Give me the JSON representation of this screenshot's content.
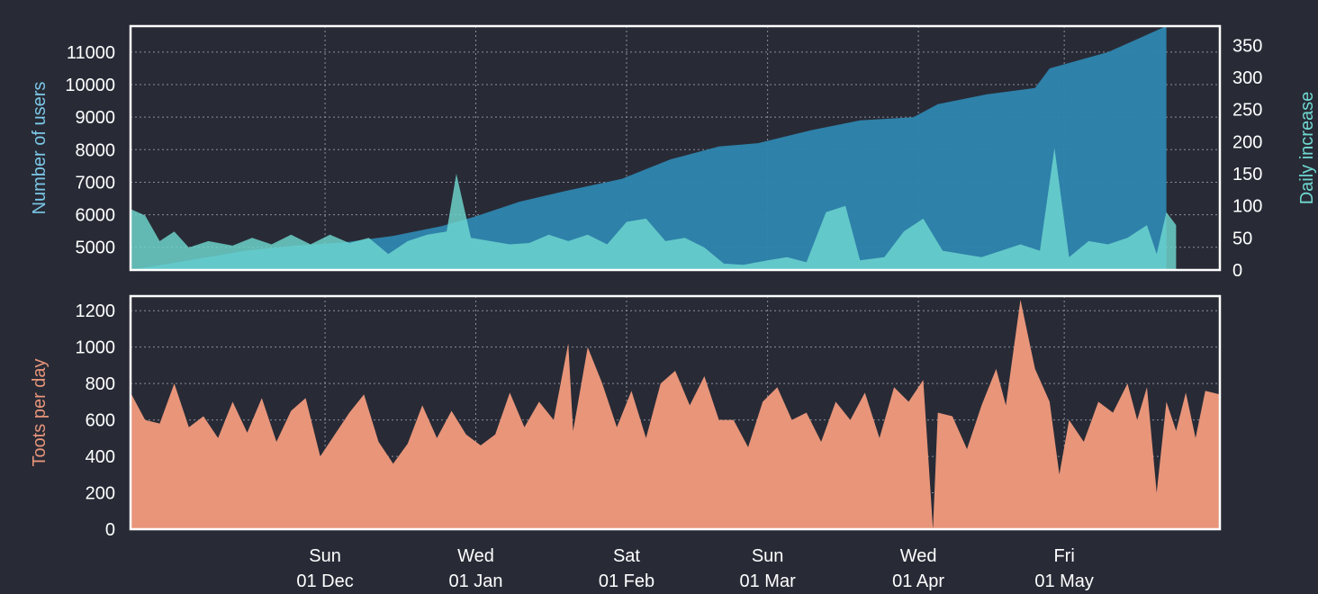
{
  "chart_data": [
    {
      "type": "area",
      "ylabel": "Number of users",
      "y2label": "Daily increase",
      "ylim": [
        4300,
        11800
      ],
      "y2lim": [
        0,
        380
      ],
      "yticks": [
        5000,
        6000,
        7000,
        8000,
        9000,
        10000,
        11000
      ],
      "y2ticks": [
        0,
        50,
        100,
        150,
        200,
        250,
        300,
        350
      ],
      "grid": true,
      "colors": {
        "users": "#2e86b0",
        "increase": "#6fd8d0",
        "axis_left": "#7cc8e8",
        "axis_right": "#6fd8d0"
      },
      "series": [
        {
          "name": "Number of users",
          "axis": "left",
          "points": [
            [
              "2019-10-22",
              4300
            ],
            [
              "2019-11-01",
              4550
            ],
            [
              "2019-11-15",
              4900
            ],
            [
              "2019-11-25",
              5050
            ],
            [
              "2019-12-05",
              5150
            ],
            [
              "2019-12-15",
              5350
            ],
            [
              "2019-12-25",
              5650
            ],
            [
              "2020-01-01",
              5950
            ],
            [
              "2020-01-10",
              6400
            ],
            [
              "2020-01-20",
              6750
            ],
            [
              "2020-01-31",
              7100
            ],
            [
              "2020-02-10",
              7700
            ],
            [
              "2020-02-20",
              8100
            ],
            [
              "2020-02-28",
              8200
            ],
            [
              "2020-03-10",
              8600
            ],
            [
              "2020-03-20",
              8900
            ],
            [
              "2020-03-31",
              9000
            ],
            [
              "2020-04-05",
              9400
            ],
            [
              "2020-04-15",
              9700
            ],
            [
              "2020-04-25",
              9900
            ],
            [
              "2020-04-28",
              10500
            ],
            [
              "2020-05-10",
              11000
            ],
            [
              "2020-05-22",
              11800
            ]
          ]
        },
        {
          "name": "Daily increase",
          "axis": "right",
          "points": [
            [
              "2019-10-22",
              95
            ],
            [
              "2019-10-25",
              85
            ],
            [
              "2019-10-28",
              45
            ],
            [
              "2019-10-31",
              60
            ],
            [
              "2019-11-03",
              35
            ],
            [
              "2019-11-07",
              45
            ],
            [
              "2019-11-12",
              38
            ],
            [
              "2019-11-16",
              50
            ],
            [
              "2019-11-20",
              40
            ],
            [
              "2019-11-24",
              55
            ],
            [
              "2019-11-28",
              40
            ],
            [
              "2019-12-02",
              55
            ],
            [
              "2019-12-06",
              42
            ],
            [
              "2019-12-10",
              50
            ],
            [
              "2019-12-14",
              25
            ],
            [
              "2019-12-18",
              45
            ],
            [
              "2019-12-22",
              55
            ],
            [
              "2019-12-26",
              60
            ],
            [
              "2019-12-28",
              150
            ],
            [
              "2019-12-31",
              50
            ],
            [
              "2020-01-04",
              45
            ],
            [
              "2020-01-08",
              40
            ],
            [
              "2020-01-12",
              42
            ],
            [
              "2020-01-16",
              55
            ],
            [
              "2020-01-20",
              45
            ],
            [
              "2020-01-24",
              55
            ],
            [
              "2020-01-28",
              40
            ],
            [
              "2020-02-01",
              75
            ],
            [
              "2020-02-05",
              80
            ],
            [
              "2020-02-09",
              45
            ],
            [
              "2020-02-13",
              50
            ],
            [
              "2020-02-17",
              35
            ],
            [
              "2020-02-21",
              10
            ],
            [
              "2020-02-25",
              8
            ],
            [
              "2020-03-01",
              15
            ],
            [
              "2020-03-05",
              20
            ],
            [
              "2020-03-09",
              12
            ],
            [
              "2020-03-13",
              90
            ],
            [
              "2020-03-17",
              100
            ],
            [
              "2020-03-20",
              15
            ],
            [
              "2020-03-25",
              20
            ],
            [
              "2020-03-29",
              60
            ],
            [
              "2020-04-02",
              80
            ],
            [
              "2020-04-06",
              30
            ],
            [
              "2020-04-10",
              25
            ],
            [
              "2020-04-14",
              20
            ],
            [
              "2020-04-18",
              30
            ],
            [
              "2020-04-22",
              40
            ],
            [
              "2020-04-26",
              30
            ],
            [
              "2020-04-29",
              190
            ],
            [
              "2020-05-02",
              20
            ],
            [
              "2020-05-06",
              45
            ],
            [
              "2020-05-10",
              40
            ],
            [
              "2020-05-14",
              50
            ],
            [
              "2020-05-18",
              70
            ],
            [
              "2020-05-20",
              25
            ],
            [
              "2020-05-22",
              90
            ],
            [
              "2020-05-24",
              70
            ]
          ]
        }
      ]
    },
    {
      "type": "area",
      "ylabel": "Toots per day",
      "ylim": [
        0,
        1280
      ],
      "yticks": [
        0,
        200,
        400,
        600,
        800,
        1000,
        1200
      ],
      "grid": true,
      "colors": {
        "toots": "#e8957a",
        "axis_left": "#e8957a"
      },
      "series": [
        {
          "name": "Toots per day",
          "axis": "left",
          "points": [
            [
              "2019-10-22",
              750
            ],
            [
              "2019-10-25",
              600
            ],
            [
              "2019-10-28",
              580
            ],
            [
              "2019-10-31",
              800
            ],
            [
              "2019-11-03",
              560
            ],
            [
              "2019-11-06",
              620
            ],
            [
              "2019-11-09",
              500
            ],
            [
              "2019-11-12",
              700
            ],
            [
              "2019-11-15",
              530
            ],
            [
              "2019-11-18",
              720
            ],
            [
              "2019-11-21",
              480
            ],
            [
              "2019-11-24",
              650
            ],
            [
              "2019-11-27",
              720
            ],
            [
              "2019-11-30",
              400
            ],
            [
              "2019-12-03",
              520
            ],
            [
              "2019-12-06",
              640
            ],
            [
              "2019-12-09",
              740
            ],
            [
              "2019-12-12",
              480
            ],
            [
              "2019-12-15",
              360
            ],
            [
              "2019-12-18",
              470
            ],
            [
              "2019-12-21",
              680
            ],
            [
              "2019-12-24",
              500
            ],
            [
              "2019-12-27",
              650
            ],
            [
              "2019-12-30",
              520
            ],
            [
              "2020-01-02",
              460
            ],
            [
              "2020-01-05",
              520
            ],
            [
              "2020-01-08",
              750
            ],
            [
              "2020-01-11",
              560
            ],
            [
              "2020-01-14",
              700
            ],
            [
              "2020-01-17",
              600
            ],
            [
              "2020-01-20",
              1020
            ],
            [
              "2020-01-21",
              540
            ],
            [
              "2020-01-24",
              1000
            ],
            [
              "2020-01-27",
              800
            ],
            [
              "2020-01-30",
              560
            ],
            [
              "2020-02-02",
              760
            ],
            [
              "2020-02-05",
              500
            ],
            [
              "2020-02-08",
              800
            ],
            [
              "2020-02-11",
              870
            ],
            [
              "2020-02-14",
              680
            ],
            [
              "2020-02-17",
              840
            ],
            [
              "2020-02-20",
              600
            ],
            [
              "2020-02-23",
              600
            ],
            [
              "2020-02-26",
              450
            ],
            [
              "2020-02-29",
              700
            ],
            [
              "2020-03-03",
              780
            ],
            [
              "2020-03-06",
              600
            ],
            [
              "2020-03-09",
              640
            ],
            [
              "2020-03-12",
              480
            ],
            [
              "2020-03-15",
              700
            ],
            [
              "2020-03-18",
              600
            ],
            [
              "2020-03-21",
              750
            ],
            [
              "2020-03-24",
              500
            ],
            [
              "2020-03-27",
              780
            ],
            [
              "2020-03-30",
              700
            ],
            [
              "2020-04-02",
              820
            ],
            [
              "2020-04-04",
              0
            ],
            [
              "2020-04-05",
              640
            ],
            [
              "2020-04-08",
              620
            ],
            [
              "2020-04-11",
              440
            ],
            [
              "2020-04-14",
              680
            ],
            [
              "2020-04-17",
              880
            ],
            [
              "2020-04-19",
              680
            ],
            [
              "2020-04-22",
              1260
            ],
            [
              "2020-04-25",
              880
            ],
            [
              "2020-04-28",
              700
            ],
            [
              "2020-04-30",
              300
            ],
            [
              "2020-05-02",
              600
            ],
            [
              "2020-05-05",
              480
            ],
            [
              "2020-05-08",
              700
            ],
            [
              "2020-05-11",
              640
            ],
            [
              "2020-05-14",
              800
            ],
            [
              "2020-05-16",
              600
            ],
            [
              "2020-05-18",
              780
            ],
            [
              "2020-05-20",
              200
            ],
            [
              "2020-05-22",
              700
            ],
            [
              "2020-05-24",
              540
            ],
            [
              "2020-05-26",
              750
            ],
            [
              "2020-05-28",
              500
            ],
            [
              "2020-05-30",
              760
            ],
            [
              "2020-06-02",
              740
            ]
          ]
        }
      ]
    }
  ],
  "x_axis": {
    "range": [
      "2019-10-22",
      "2020-06-02"
    ],
    "ticks": [
      {
        "date": "2019-12-01",
        "day": "Sun",
        "label": "01 Dec"
      },
      {
        "date": "2020-01-01",
        "day": "Wed",
        "label": "01 Jan"
      },
      {
        "date": "2020-02-01",
        "day": "Sat",
        "label": "01 Feb"
      },
      {
        "date": "2020-03-01",
        "day": "Sun",
        "label": "01 Mar"
      },
      {
        "date": "2020-04-01",
        "day": "Wed",
        "label": "01 Apr"
      },
      {
        "date": "2020-05-01",
        "day": "Fri",
        "label": "01 May"
      }
    ]
  }
}
